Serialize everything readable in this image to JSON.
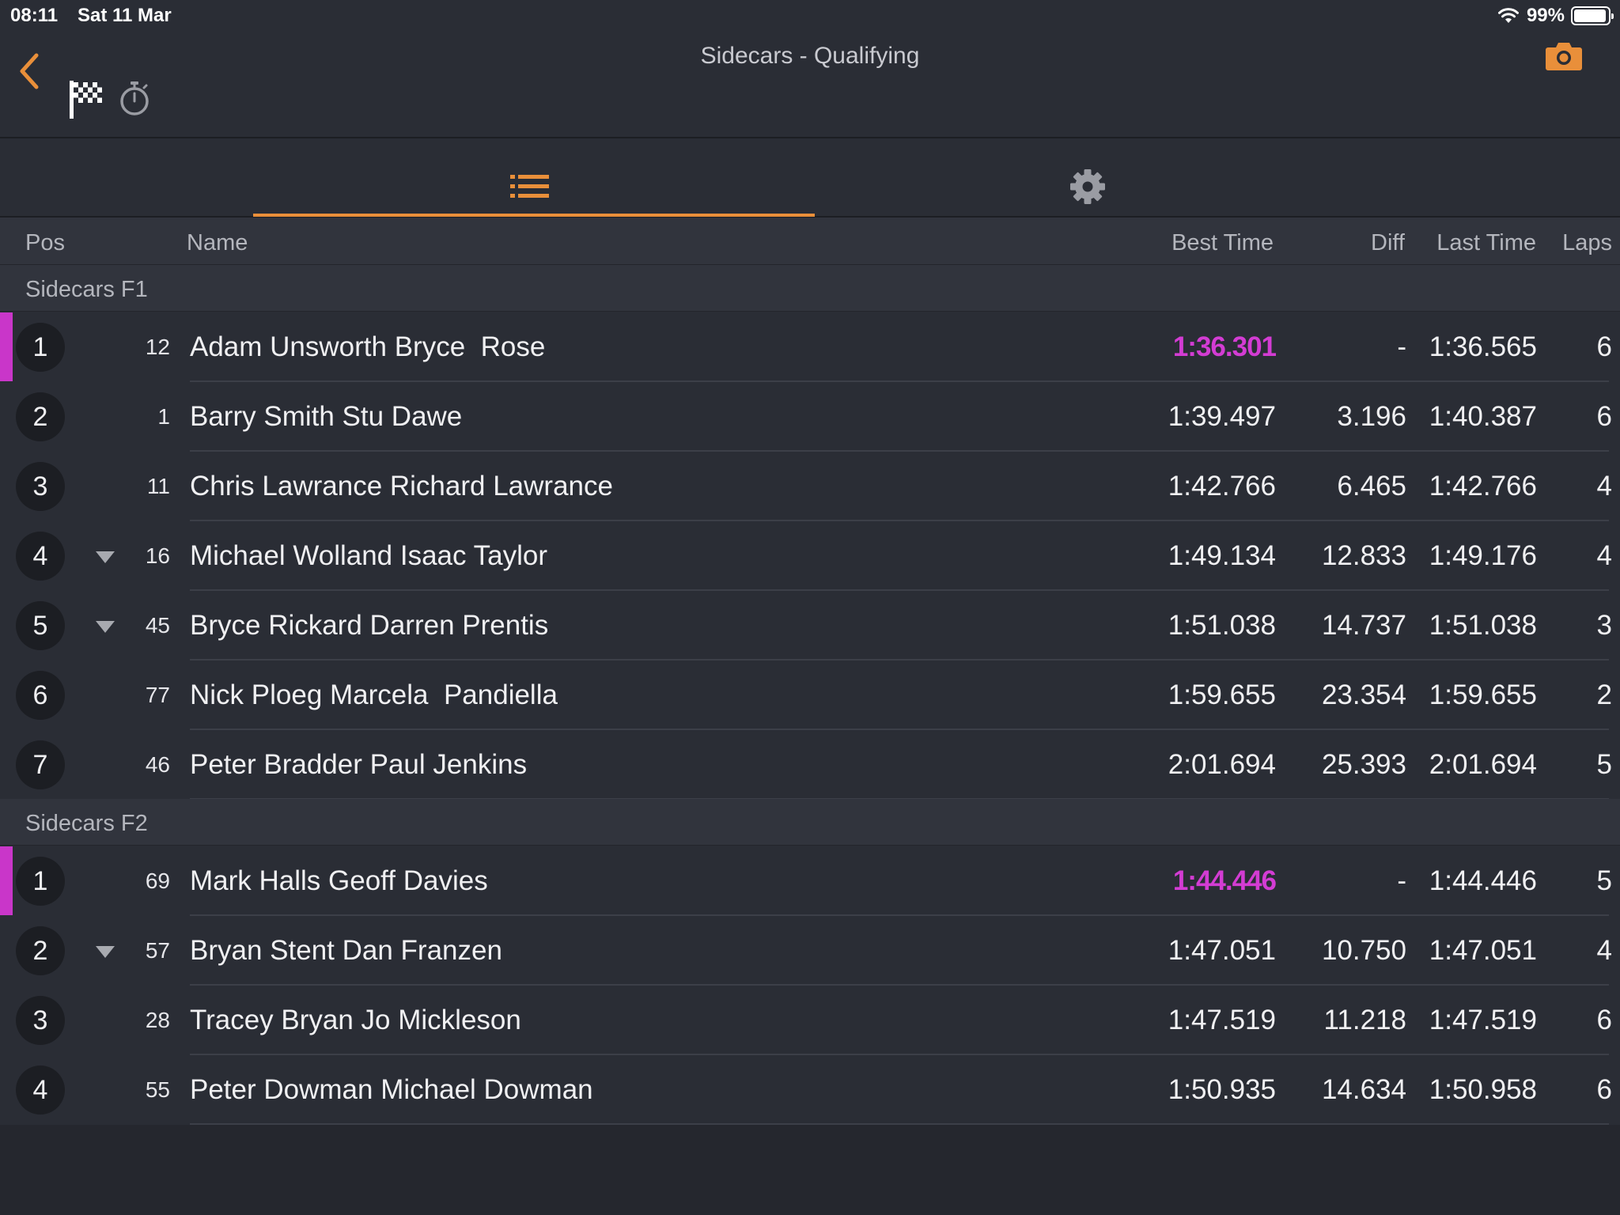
{
  "status_bar": {
    "time": "08:11",
    "date": "Sat 11 Mar",
    "battery": "99%"
  },
  "header": {
    "title": "Sidecars - Qualifying"
  },
  "icons": {
    "back": "chevron-left-icon",
    "flag": "checkered-flag-icon",
    "stopwatch": "stopwatch-icon",
    "camera": "camera-icon",
    "list": "list-icon",
    "settings": "gear-icon"
  },
  "colors": {
    "accent": "#e98f3a",
    "fastest": "#d33cd3",
    "background": "#2a2d35"
  },
  "columns": {
    "pos": "Pos",
    "name": "Name",
    "best": "Best Time",
    "diff": "Diff",
    "last": "Last Time",
    "laps": "Laps"
  },
  "groups": [
    {
      "title": "Sidecars F1",
      "rows": [
        {
          "pos": "1",
          "num": "12",
          "name": "Adam Unsworth Bryce  Rose",
          "best": "1:36.301",
          "diff": "-",
          "last": "1:36.565",
          "laps": "6",
          "fastest": true,
          "trend": ""
        },
        {
          "pos": "2",
          "num": "1",
          "name": "Barry Smith Stu Dawe",
          "best": "1:39.497",
          "diff": "3.196",
          "last": "1:40.387",
          "laps": "6",
          "fastest": false,
          "trend": ""
        },
        {
          "pos": "3",
          "num": "11",
          "name": "Chris Lawrance Richard Lawrance",
          "best": "1:42.766",
          "diff": "6.465",
          "last": "1:42.766",
          "laps": "4",
          "fastest": false,
          "trend": ""
        },
        {
          "pos": "4",
          "num": "16",
          "name": "Michael Wolland Isaac Taylor",
          "best": "1:49.134",
          "diff": "12.833",
          "last": "1:49.176",
          "laps": "4",
          "fastest": false,
          "trend": "down"
        },
        {
          "pos": "5",
          "num": "45",
          "name": "Bryce Rickard Darren Prentis",
          "best": "1:51.038",
          "diff": "14.737",
          "last": "1:51.038",
          "laps": "3",
          "fastest": false,
          "trend": "down"
        },
        {
          "pos": "6",
          "num": "77",
          "name": "Nick Ploeg Marcela  Pandiella",
          "best": "1:59.655",
          "diff": "23.354",
          "last": "1:59.655",
          "laps": "2",
          "fastest": false,
          "trend": ""
        },
        {
          "pos": "7",
          "num": "46",
          "name": "Peter Bradder Paul Jenkins",
          "best": "2:01.694",
          "diff": "25.393",
          "last": "2:01.694",
          "laps": "5",
          "fastest": false,
          "trend": ""
        }
      ]
    },
    {
      "title": "Sidecars F2",
      "rows": [
        {
          "pos": "1",
          "num": "69",
          "name": "Mark Halls Geoff Davies",
          "best": "1:44.446",
          "diff": "-",
          "last": "1:44.446",
          "laps": "5",
          "fastest": true,
          "trend": ""
        },
        {
          "pos": "2",
          "num": "57",
          "name": "Bryan Stent Dan Franzen",
          "best": "1:47.051",
          "diff": "10.750",
          "last": "1:47.051",
          "laps": "4",
          "fastest": false,
          "trend": "down"
        },
        {
          "pos": "3",
          "num": "28",
          "name": "Tracey Bryan Jo Mickleson",
          "best": "1:47.519",
          "diff": "11.218",
          "last": "1:47.519",
          "laps": "6",
          "fastest": false,
          "trend": ""
        },
        {
          "pos": "4",
          "num": "55",
          "name": "Peter Dowman Michael Dowman",
          "best": "1:50.935",
          "diff": "14.634",
          "last": "1:50.958",
          "laps": "6",
          "fastest": false,
          "trend": ""
        }
      ]
    }
  ]
}
